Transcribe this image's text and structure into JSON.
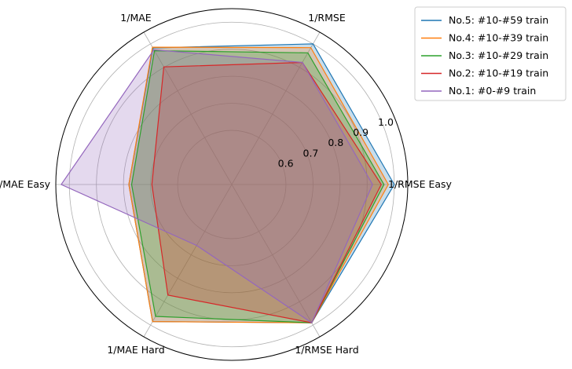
{
  "chart_data": {
    "type": "radar",
    "axes": [
      "1/RMSE Easy",
      "1/RMSE",
      "1/MAE",
      "1/MAE Easy",
      "1/MAE Hard",
      "1/RMSE Hard"
    ],
    "r_ticks": [
      0.6,
      0.7,
      0.8,
      0.9,
      1.0
    ],
    "r_range": [
      0.4,
      1.05
    ],
    "grid": true,
    "legend_position": "outside-top-right",
    "series": [
      {
        "name": "No.5: #10-#59 train",
        "color": "#1f77b4",
        "values": [
          1.0,
          1.0,
          0.983,
          0.78,
          0.985,
          0.99
        ]
      },
      {
        "name": "No.4: #10-#39 train",
        "color": "#ff7f0e",
        "values": [
          0.978,
          0.984,
          0.986,
          0.78,
          0.985,
          0.99
        ]
      },
      {
        "name": "No.3: #10-#29 train",
        "color": "#2ca02c",
        "values": [
          0.962,
          0.962,
          0.971,
          0.77,
          0.963,
          0.99
        ]
      },
      {
        "name": "No.2: #10-#19 train",
        "color": "#d62728",
        "values": [
          0.952,
          0.921,
          0.902,
          0.695,
          0.872,
          0.99
        ]
      },
      {
        "name": "No.1: #0-#9 train",
        "color": "#9467bd",
        "values": [
          0.92,
          0.921,
          0.975,
          1.03,
          0.66,
          0.99
        ]
      }
    ]
  }
}
